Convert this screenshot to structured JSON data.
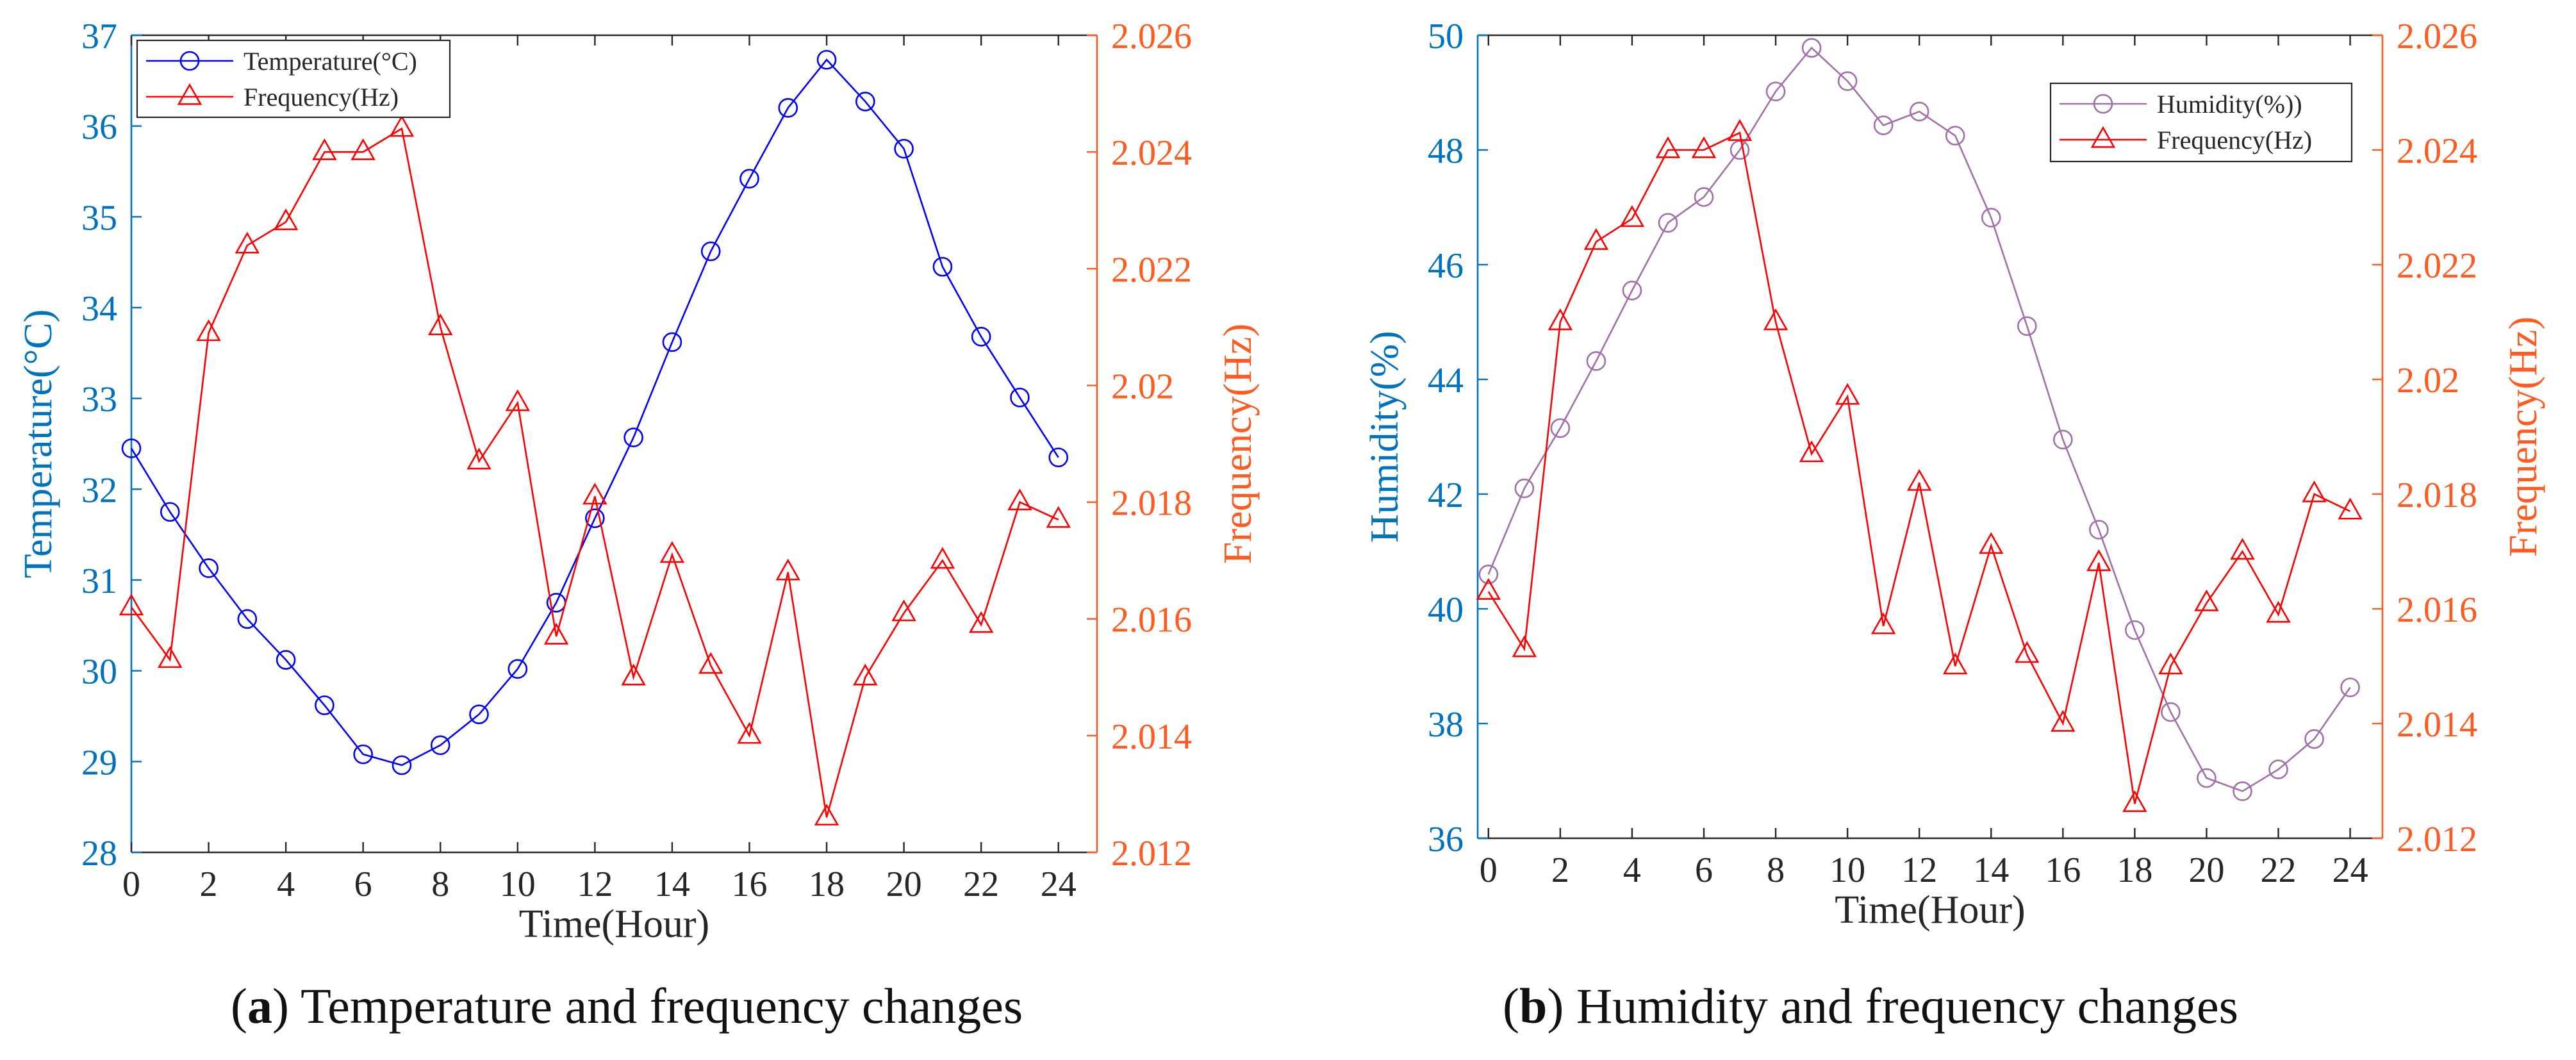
{
  "colors": {
    "temperature": "#0000ff",
    "humidity": "#a070a8",
    "frequency": "#ff0000",
    "left_axis": "#0072bd",
    "right_axis": "#ff5a1f",
    "axis": "#262626"
  },
  "chart_data": [
    {
      "id": "a",
      "type": "line",
      "title": "",
      "caption_label": "a",
      "caption_text": "Temperature and frequency changes",
      "x": [
        0,
        1,
        2,
        3,
        4,
        5,
        6,
        7,
        8,
        9,
        10,
        11,
        12,
        13,
        14,
        15,
        16,
        17,
        18,
        19,
        20,
        21,
        22,
        23,
        24
      ],
      "xlabel": "Time(Hour)",
      "xlim": [
        0,
        25
      ],
      "xticks": [
        "0",
        "2",
        "4",
        "6",
        "8",
        "10",
        "12",
        "14",
        "16",
        "18",
        "20",
        "22",
        "24"
      ],
      "ylabel": "Temperature(°C)",
      "ylim": [
        28,
        37
      ],
      "yticks": [
        "28",
        "29",
        "30",
        "31",
        "32",
        "33",
        "34",
        "35",
        "36",
        "37"
      ],
      "y2label": "Frequency(Hz)",
      "y2lim": [
        2.012,
        2.026
      ],
      "y2ticks": [
        "2.012",
        "2.014",
        "2.016",
        "2.018",
        "2.02",
        "2.022",
        "2.024",
        "2.026"
      ],
      "legend_position": "top-left",
      "series": [
        {
          "name": "Temperature(°C)",
          "axis": "left",
          "marker": "circle",
          "values": [
            32.45,
            31.75,
            31.13,
            30.57,
            30.12,
            29.62,
            29.08,
            28.96,
            29.18,
            29.52,
            30.02,
            30.75,
            31.68,
            32.57,
            33.62,
            34.62,
            35.42,
            36.2,
            36.73,
            36.27,
            35.75,
            34.45,
            33.68,
            33.01,
            32.35
          ]
        },
        {
          "name": "Frequency(Hz)",
          "axis": "right",
          "marker": "triangle",
          "values": [
            2.0162,
            2.0153,
            2.0209,
            2.0224,
            2.0228,
            2.024,
            2.024,
            2.0244,
            2.021,
            2.0187,
            2.0197,
            2.0157,
            2.0181,
            2.015,
            2.0171,
            2.0152,
            2.014,
            2.0168,
            2.0126,
            2.015,
            2.0161,
            2.017,
            2.0159,
            2.018,
            2.0177
          ]
        }
      ]
    },
    {
      "id": "b",
      "type": "line",
      "title": "",
      "caption_label": "b",
      "caption_text": "Humidity and frequency changes",
      "x": [
        0,
        1,
        2,
        3,
        4,
        5,
        6,
        7,
        8,
        9,
        10,
        11,
        12,
        13,
        14,
        15,
        16,
        17,
        18,
        19,
        20,
        21,
        22,
        23,
        24
      ],
      "xlabel": "Time(Hour)",
      "xlim": [
        -0.3,
        24.9
      ],
      "xticks": [
        "0",
        "2",
        "4",
        "6",
        "8",
        "10",
        "12",
        "14",
        "16",
        "18",
        "20",
        "22",
        "24"
      ],
      "ylabel": "Humidity(%)",
      "ylim": [
        36,
        50
      ],
      "yticks": [
        "36",
        "38",
        "40",
        "42",
        "44",
        "46",
        "48",
        "50"
      ],
      "y2label": "Frequency(Hz)",
      "y2lim": [
        2.012,
        2.026
      ],
      "y2ticks": [
        "2.012",
        "2.014",
        "2.016",
        "2.018",
        "2.02",
        "2.022",
        "2.024",
        "2.026"
      ],
      "legend_position": "top-right",
      "series": [
        {
          "name": "Humidity(%))",
          "axis": "left",
          "marker": "circle",
          "values": [
            40.6,
            42.1,
            43.15,
            44.32,
            45.55,
            46.73,
            47.18,
            48.0,
            49.02,
            49.78,
            49.2,
            48.43,
            48.67,
            48.25,
            46.82,
            44.93,
            42.95,
            41.38,
            39.63,
            38.2,
            37.05,
            36.82,
            37.2,
            37.73,
            38.63
          ]
        },
        {
          "name": "Frequency(Hz)",
          "axis": "right",
          "marker": "triangle",
          "values": [
            2.0163,
            2.0153,
            2.021,
            2.0224,
            2.0228,
            2.024,
            2.024,
            2.0243,
            2.021,
            2.0187,
            2.0197,
            2.0157,
            2.0182,
            2.015,
            2.0171,
            2.0152,
            2.014,
            2.0168,
            2.0126,
            2.015,
            2.0161,
            2.017,
            2.0159,
            2.018,
            2.0177
          ]
        }
      ]
    }
  ]
}
